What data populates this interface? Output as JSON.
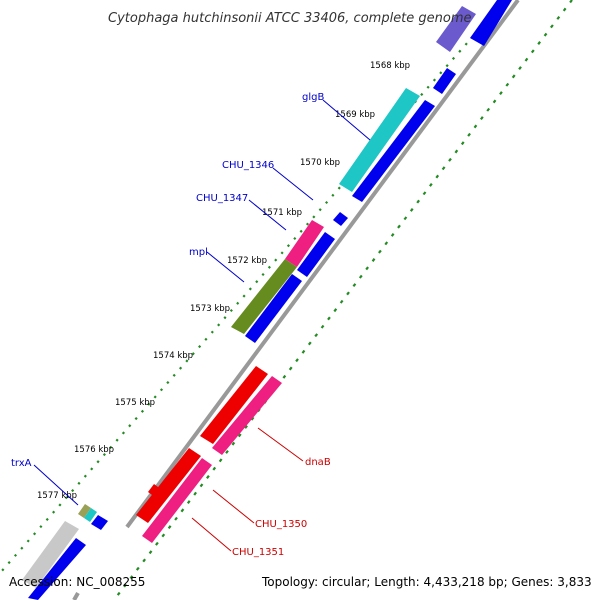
{
  "title": "Cytophaga hutchinsonii ATCC 33406, complete genome",
  "footer": {
    "accession": "Accession: NC_008255",
    "summary": "Topology: circular; Length: 4,433,218 bp; Genes: 3,833"
  },
  "ticks": [
    "1568 kbp",
    "1569 kbp",
    "1570 kbp",
    "1571 kbp",
    "1572 kbp",
    "1573 kbp",
    "1574 kbp",
    "1575 kbp",
    "1576 kbp",
    "1577 kbp"
  ],
  "gene_labels": [
    {
      "text": "glgB",
      "color": "#0000cc"
    },
    {
      "text": "CHU_1346",
      "color": "#0000cc"
    },
    {
      "text": "CHU_1347",
      "color": "#0000cc"
    },
    {
      "text": "mpl",
      "color": "#0000cc"
    },
    {
      "text": "trxA",
      "color": "#0000cc"
    },
    {
      "text": "dnaB",
      "color": "#cc0000"
    },
    {
      "text": "CHU_1350",
      "color": "#cc0000"
    },
    {
      "text": "CHU_1351",
      "color": "#cc0000"
    }
  ],
  "colors": {
    "backbone": "#888888",
    "tick_dots": "#228b22",
    "cds_forward": "#0000ee",
    "label_forward": "#0000cc",
    "label_reverse": "#cc0000",
    "glgB": "#1fc6c6",
    "CHU_1347": "#ee1f80",
    "mpl": "#668b1f",
    "dnaB": "#ee0000",
    "CHU_1350": "#ee1f80",
    "CHU_1351": "#ee1f80",
    "top_feature": "#6a5acd",
    "gray_feature": "#c8c8c8"
  }
}
